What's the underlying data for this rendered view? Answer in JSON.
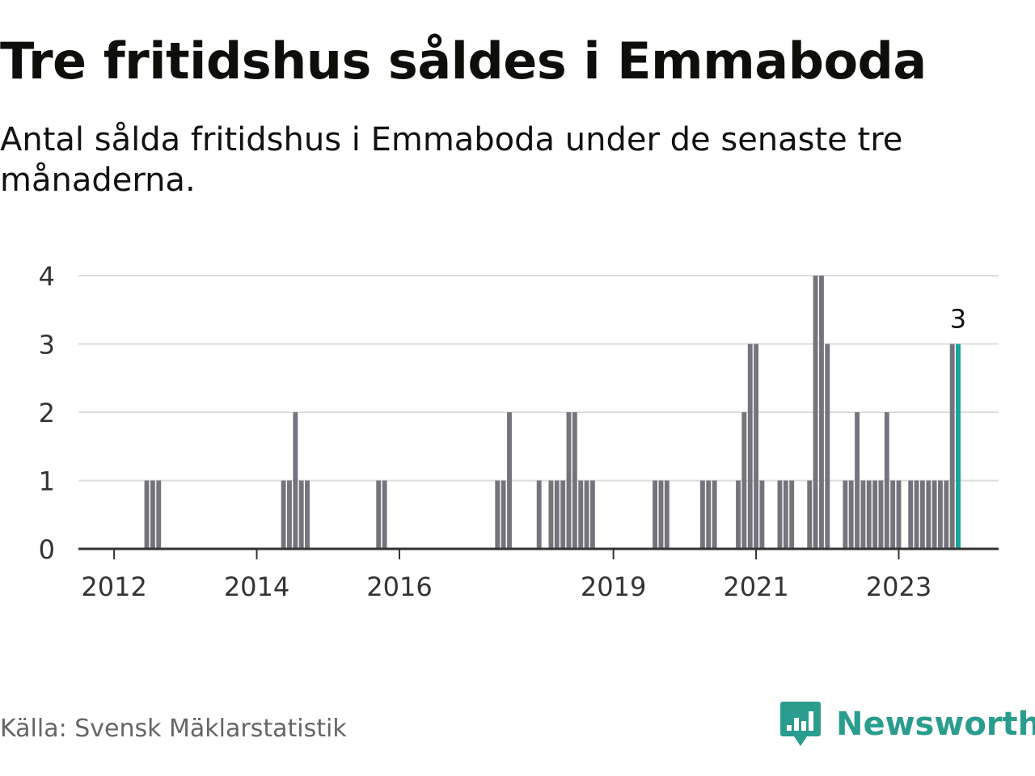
{
  "title": "Tre fritidshus såldes i Emmaboda",
  "subtitle": "Antal sålda fritidshus i Emmaboda under de senaste tre månaderna.",
  "source": "Källa: Svensk Mäklarstatistik",
  "brand": {
    "name": "Newsworthy",
    "color": "#2a9d8f"
  },
  "colors": {
    "bar": "#75747c",
    "highlight": "#1aa39a",
    "grid": "#dddddd",
    "axis": "#333333",
    "label": "#333333"
  },
  "chart_data": {
    "type": "bar",
    "title": "Tre fritidshus såldes i Emmaboda",
    "xlabel": "",
    "ylabel": "",
    "ylim": [
      0,
      4
    ],
    "yticks": [
      0,
      1,
      2,
      3,
      4
    ],
    "xlim": [
      2011.5,
      2024.4
    ],
    "xticks": [
      2012,
      2014,
      2016,
      2019,
      2021,
      2023
    ],
    "grid": true,
    "bar_width_months": 0.8,
    "annotations": [
      {
        "x": 2023.833,
        "value": 3,
        "label": "3"
      }
    ],
    "highlight_x": 2023.833,
    "x": [
      2012.458,
      2012.542,
      2012.625,
      2014.375,
      2014.458,
      2014.542,
      2014.625,
      2014.708,
      2015.708,
      2015.792,
      2017.375,
      2017.458,
      2017.542,
      2017.958,
      2018.125,
      2018.208,
      2018.292,
      2018.375,
      2018.458,
      2018.542,
      2018.625,
      2018.708,
      2019.583,
      2019.667,
      2019.75,
      2020.25,
      2020.333,
      2020.417,
      2020.75,
      2020.833,
      2020.917,
      2021.0,
      2021.083,
      2021.333,
      2021.417,
      2021.5,
      2021.75,
      2021.833,
      2021.917,
      2022.0,
      2022.25,
      2022.333,
      2022.417,
      2022.5,
      2022.583,
      2022.667,
      2022.75,
      2022.833,
      2022.917,
      2023.0,
      2023.167,
      2023.25,
      2023.333,
      2023.417,
      2023.5,
      2023.583,
      2023.667,
      2023.75,
      2023.833
    ],
    "values": [
      1,
      1,
      1,
      1,
      1,
      2,
      1,
      1,
      1,
      1,
      1,
      1,
      2,
      1,
      1,
      1,
      1,
      2,
      2,
      1,
      1,
      1,
      1,
      1,
      1,
      1,
      1,
      1,
      1,
      2,
      3,
      3,
      1,
      1,
      1,
      1,
      1,
      4,
      4,
      3,
      1,
      1,
      2,
      1,
      1,
      1,
      1,
      2,
      1,
      1,
      1,
      1,
      1,
      1,
      1,
      1,
      1,
      3,
      3
    ]
  }
}
